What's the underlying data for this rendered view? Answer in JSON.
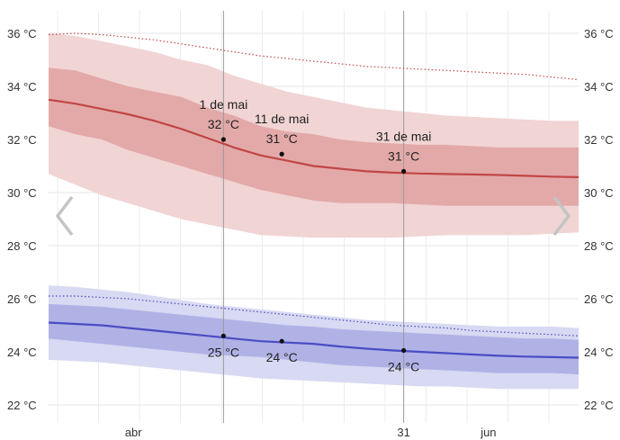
{
  "chart_data": {
    "type": "area",
    "title": "",
    "xlabel": "",
    "ylabel": "",
    "unit": "°C",
    "x_range": [
      0,
      100
    ],
    "ylim": [
      21.5,
      37
    ],
    "y_ticks": [
      22,
      24,
      26,
      28,
      30,
      32,
      34,
      36
    ],
    "y_tick_labels": [
      "22 °C",
      "24 °C",
      "26 °C",
      "28 °C",
      "30 °C",
      "32 °C",
      "34 °C",
      "36 °C"
    ],
    "x_tick_labels": [
      {
        "x": 16,
        "label": "abr"
      },
      {
        "x": 67,
        "label": "31"
      },
      {
        "x": 83,
        "label": "jun"
      }
    ],
    "grid": true,
    "x": [
      0,
      5,
      10,
      15,
      20,
      25,
      30,
      35,
      40,
      45,
      50,
      55,
      60,
      65,
      70,
      75,
      80,
      85,
      90,
      95,
      100
    ],
    "series": [
      {
        "role": "high",
        "color": "#c24646",
        "band_outer_color": "#f1d4d4",
        "band_inner_color": "#e3a9a9",
        "mean": [
          33.5,
          33.35,
          33.15,
          32.95,
          32.7,
          32.4,
          32.05,
          31.7,
          31.4,
          31.2,
          31.0,
          30.9,
          30.8,
          30.75,
          30.72,
          30.7,
          30.68,
          30.66,
          30.63,
          30.6,
          30.58
        ],
        "p25": [
          32.5,
          32.2,
          32.0,
          31.6,
          31.3,
          31.0,
          30.7,
          30.4,
          30.1,
          29.9,
          29.7,
          29.6,
          29.6,
          29.6,
          29.55,
          29.5,
          29.5,
          29.5,
          29.5,
          29.5,
          29.5
        ],
        "p75": [
          34.7,
          34.6,
          34.3,
          34.0,
          33.8,
          33.6,
          33.2,
          32.9,
          32.5,
          32.3,
          32.2,
          32.0,
          31.9,
          31.85,
          31.8,
          31.8,
          31.75,
          31.7,
          31.7,
          31.7,
          31.7
        ],
        "p10": [
          30.7,
          30.3,
          29.9,
          29.6,
          29.3,
          29.0,
          28.8,
          28.6,
          28.4,
          28.35,
          28.3,
          28.3,
          28.3,
          28.3,
          28.35,
          28.4,
          28.4,
          28.4,
          28.4,
          28.45,
          28.5
        ],
        "p90": [
          36.0,
          35.9,
          35.7,
          35.5,
          35.3,
          35.0,
          34.8,
          34.4,
          34.1,
          33.8,
          33.6,
          33.4,
          33.2,
          33.1,
          33.0,
          32.9,
          32.85,
          32.8,
          32.75,
          32.7,
          32.7
        ],
        "record_dotted": [
          35.95,
          36.0,
          35.95,
          35.85,
          35.75,
          35.6,
          35.45,
          35.3,
          35.15,
          35.05,
          34.95,
          34.85,
          34.75,
          34.7,
          34.65,
          34.6,
          34.55,
          34.5,
          34.45,
          34.35,
          34.25
        ]
      },
      {
        "role": "low",
        "color": "#4a4cc4",
        "band_outer_color": "#d8d9f2",
        "band_inner_color": "#b0b2e6",
        "mean": [
          25.1,
          25.05,
          25.0,
          24.9,
          24.8,
          24.7,
          24.6,
          24.5,
          24.4,
          24.35,
          24.3,
          24.2,
          24.12,
          24.05,
          24.0,
          23.95,
          23.9,
          23.85,
          23.82,
          23.8,
          23.78
        ],
        "p25": [
          24.5,
          24.4,
          24.3,
          24.2,
          24.1,
          24.0,
          23.9,
          23.85,
          23.8,
          23.7,
          23.6,
          23.5,
          23.45,
          23.4,
          23.35,
          23.3,
          23.25,
          23.2,
          23.2,
          23.2,
          23.15
        ],
        "p75": [
          25.8,
          25.75,
          25.7,
          25.6,
          25.5,
          25.4,
          25.3,
          25.2,
          25.1,
          25.0,
          24.95,
          24.85,
          24.8,
          24.75,
          24.7,
          24.65,
          24.6,
          24.55,
          24.5,
          24.5,
          24.45
        ],
        "p10": [
          23.7,
          23.65,
          23.6,
          23.5,
          23.4,
          23.3,
          23.2,
          23.1,
          23.0,
          22.95,
          22.9,
          22.85,
          22.8,
          22.75,
          22.7,
          22.7,
          22.65,
          22.6,
          22.6,
          22.6,
          22.6
        ],
        "p90": [
          26.5,
          26.45,
          26.35,
          26.25,
          26.1,
          25.95,
          25.8,
          25.7,
          25.6,
          25.5,
          25.4,
          25.3,
          25.2,
          25.15,
          25.1,
          25.05,
          25.0,
          24.95,
          24.95,
          24.95,
          24.9
        ],
        "record_dotted": [
          26.1,
          26.1,
          26.05,
          26.0,
          25.9,
          25.8,
          25.7,
          25.6,
          25.5,
          25.4,
          25.3,
          25.2,
          25.1,
          25.0,
          24.95,
          24.9,
          24.8,
          24.75,
          24.7,
          24.65,
          24.6
        ]
      }
    ],
    "vertical_markers": [
      33,
      67
    ],
    "annotations": [
      {
        "x": 33,
        "y": 32.0,
        "date": "1 de mai",
        "value": "32 °C",
        "place": "above"
      },
      {
        "x": 44,
        "y": 31.45,
        "date": "11 de mai",
        "value": "31 °C",
        "place": "above"
      },
      {
        "x": 67,
        "y": 30.8,
        "date": "31 de mai",
        "value": "31 °C",
        "place": "above"
      },
      {
        "x": 33,
        "y": 24.6,
        "date": "",
        "value": "25 °C",
        "place": "below"
      },
      {
        "x": 44,
        "y": 24.4,
        "date": "",
        "value": "24 °C",
        "place": "below"
      },
      {
        "x": 67,
        "y": 24.05,
        "date": "",
        "value": "24 °C",
        "place": "below"
      }
    ]
  },
  "nav": {
    "prev_icon": "chevron-left-icon",
    "next_icon": "chevron-right-icon"
  }
}
